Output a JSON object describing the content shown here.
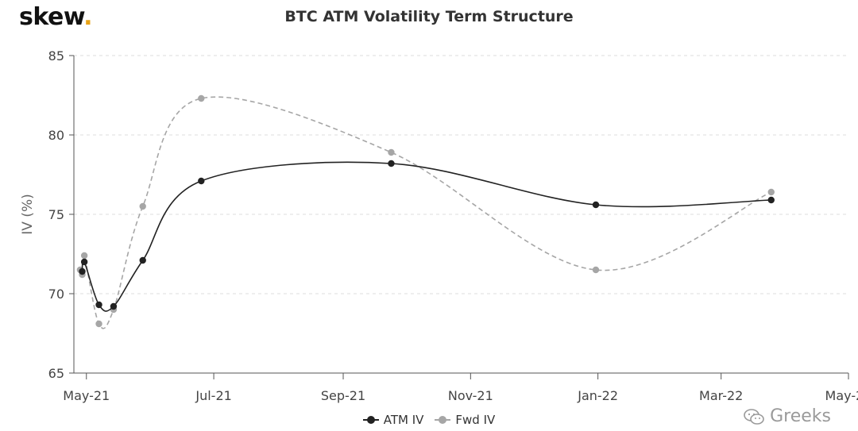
{
  "brand": {
    "name": "skew",
    "dot": "."
  },
  "watermark": {
    "text": "Greeks",
    "icon": "wechat-icon"
  },
  "colors": {
    "atm": "#222222",
    "fwd": "#a6a6a6",
    "grid": "#dedede",
    "axis": "#555555",
    "brand_dot": "#e8a317"
  },
  "chart_data": {
    "type": "line",
    "title": "BTC ATM Volatility Term Structure",
    "xlabel": "",
    "ylabel": "IV (%)",
    "ylim": [
      65,
      85
    ],
    "yticks": [
      65,
      70,
      75,
      80,
      85
    ],
    "xlim": [
      "2021-04-25",
      "2022-05-01"
    ],
    "xticks": [
      {
        "date": "2021-05-01",
        "label": "May-21"
      },
      {
        "date": "2021-07-01",
        "label": "Jul-21"
      },
      {
        "date": "2021-09-01",
        "label": "Sep-21"
      },
      {
        "date": "2021-11-01",
        "label": "Nov-21"
      },
      {
        "date": "2022-01-01",
        "label": "Jan-22"
      },
      {
        "date": "2022-03-01",
        "label": "Mar-22"
      },
      {
        "date": "2022-05-01",
        "label": "May-22"
      }
    ],
    "grid": "horizontal dashed",
    "legend_position": "bottom-center",
    "series": [
      {
        "name": "ATM IV",
        "style": "solid",
        "points": [
          {
            "x": "2021-04-29",
            "y": 71.4
          },
          {
            "x": "2021-04-30",
            "y": 72.0
          },
          {
            "x": "2021-05-07",
            "y": 69.3
          },
          {
            "x": "2021-05-14",
            "y": 69.2
          },
          {
            "x": "2021-05-28",
            "y": 72.1
          },
          {
            "x": "2021-06-25",
            "y": 77.1
          },
          {
            "x": "2021-09-24",
            "y": 78.2
          },
          {
            "x": "2021-12-31",
            "y": 75.6
          },
          {
            "x": "2022-03-25",
            "y": 75.9
          }
        ]
      },
      {
        "name": "Fwd IV",
        "style": "dashed",
        "points": [
          {
            "x": "2021-04-28",
            "y": 71.5
          },
          {
            "x": "2021-04-29",
            "y": 71.2
          },
          {
            "x": "2021-04-30",
            "y": 72.4
          },
          {
            "x": "2021-05-07",
            "y": 68.1
          },
          {
            "x": "2021-05-14",
            "y": 69.0
          },
          {
            "x": "2021-05-28",
            "y": 75.5
          },
          {
            "x": "2021-06-25",
            "y": 82.3
          },
          {
            "x": "2021-09-24",
            "y": 78.9
          },
          {
            "x": "2021-12-31",
            "y": 71.5
          },
          {
            "x": "2022-03-25",
            "y": 76.4
          }
        ]
      }
    ]
  }
}
